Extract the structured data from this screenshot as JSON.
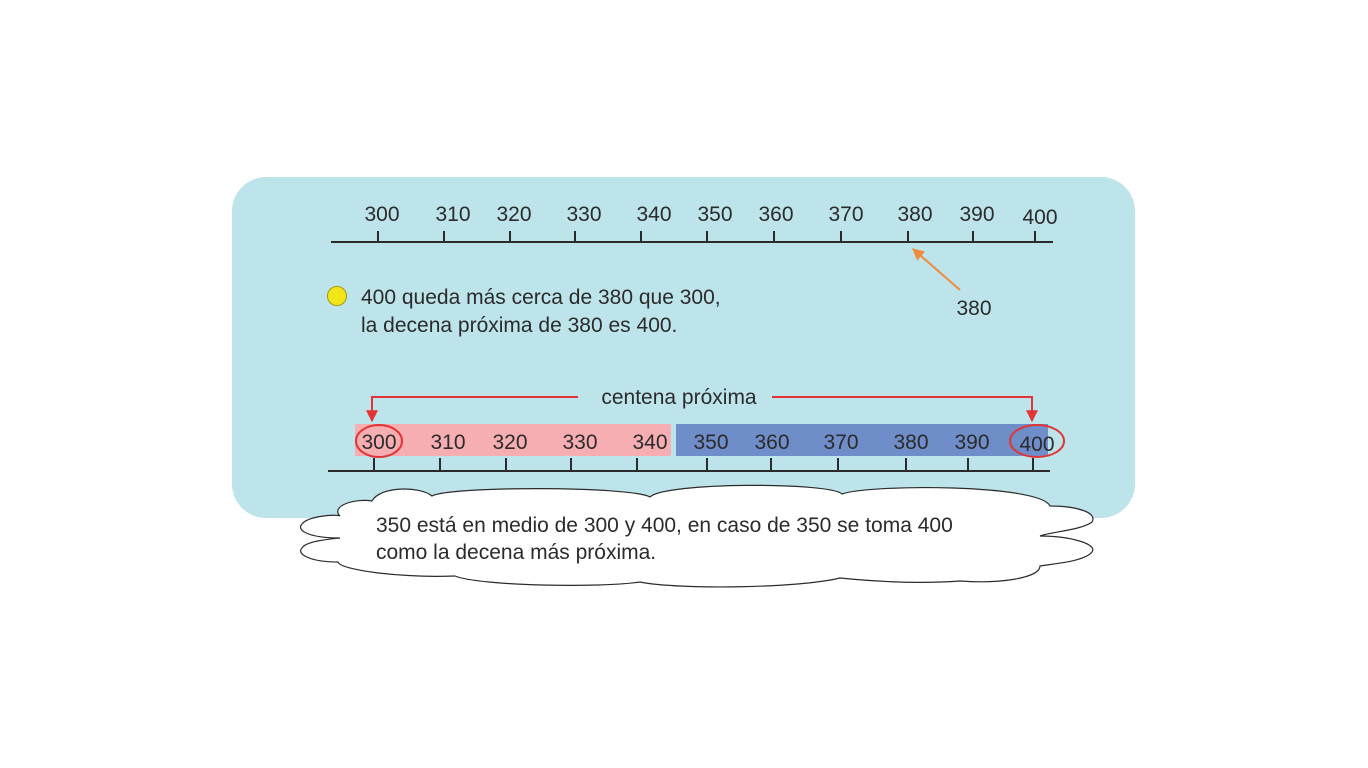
{
  "top_number_line": {
    "labels": [
      "300",
      "310",
      "320",
      "330",
      "340",
      "350",
      "360",
      "370",
      "380",
      "390",
      "400"
    ],
    "pointer_label": "380",
    "pointer_color": "#f08a3c"
  },
  "statement": {
    "line1": "400 queda más cerca de 380 que 300,",
    "line2": "la decena próxima de 380 es 400.",
    "bullet_color": "#f2e51a"
  },
  "bottom_number_line": {
    "labels": [
      "300",
      "310",
      "320",
      "330",
      "340",
      "350",
      "360",
      "370",
      "380",
      "390",
      "400"
    ],
    "bracket_label": "centena próxima",
    "lower_band_color": "#f7aeb3",
    "upper_band_color": "#6f8dc9",
    "circle_color": "#e23434",
    "circled_values": [
      "300",
      "400"
    ]
  },
  "cloud_note": {
    "line1": "350 está en medio de 300 y 400, en caso de 350 se toma 400",
    "line2": "como la decena más próxima."
  },
  "colors": {
    "panel_background": "#bde4ea",
    "axis": "#2b2b2b",
    "cloud_fill": "#ffffff",
    "cloud_stroke": "#2b2b2b"
  }
}
